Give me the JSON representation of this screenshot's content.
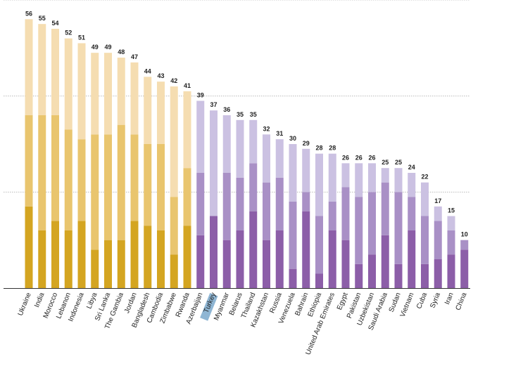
{
  "chart_data": {
    "type": "bar",
    "stacked": true,
    "grid": true,
    "ylim": [
      0,
      60
    ],
    "gridlines_at": [
      20,
      40,
      60
    ],
    "colors": {
      "group_a": [
        "#d4a521",
        "#e9c56e",
        "#f5ddb1"
      ],
      "group_b": [
        "#8c5ea8",
        "#a990c6",
        "#cbc1e2"
      ],
      "highlight_label_bg": "#8fb6d4",
      "gridline": "#b0b0b0",
      "axis": "#333333"
    },
    "categories": [
      "Ukraine",
      "India",
      "Morocco",
      "Lebanon",
      "Indonesia",
      "Libya",
      "Sri Lanka",
      "The Gambia",
      "Jordan",
      "Bangladesh",
      "Cambodia",
      "Zimbabwe",
      "Rwanda",
      "Azerbaijan",
      "Turkey",
      "Myanmar",
      "Belarus",
      "Thailand",
      "Kazakhstan",
      "Russia",
      "Venezuela",
      "Bahrain",
      "Ethiopia",
      "United Arab Emirates",
      "Egypt",
      "Pakistan",
      "Uzbekistan",
      "Saudi Arabia",
      "Sudan",
      "Vietnam",
      "Cuba",
      "Syria",
      "Iran",
      "China"
    ],
    "group": [
      "a",
      "a",
      "a",
      "a",
      "a",
      "a",
      "a",
      "a",
      "a",
      "a",
      "a",
      "a",
      "a",
      "b",
      "b",
      "b",
      "b",
      "b",
      "b",
      "b",
      "b",
      "b",
      "b",
      "b",
      "b",
      "b",
      "b",
      "b",
      "b",
      "b",
      "b",
      "b",
      "b",
      "b"
    ],
    "highlighted_category": "Turkey",
    "series": [
      {
        "values": [
          17,
          12,
          14,
          12,
          14,
          8,
          10,
          10,
          14,
          13,
          12,
          7,
          13,
          11,
          15,
          10,
          12,
          16,
          10,
          12,
          4,
          16,
          3,
          12,
          10,
          5,
          7,
          11,
          5,
          12,
          5,
          6,
          7,
          8
        ]
      },
      {
        "values": [
          19,
          24,
          22,
          21,
          17,
          24,
          22,
          24,
          18,
          17,
          18,
          12,
          12,
          13,
          0,
          14,
          11,
          10,
          12,
          11,
          14,
          4,
          12,
          6,
          11,
          14,
          13,
          11,
          15,
          7,
          10,
          8,
          5,
          2
        ]
      },
      {
        "values": [
          20,
          19,
          18,
          19,
          20,
          17,
          17,
          14,
          15,
          14,
          13,
          23,
          16,
          15,
          22,
          12,
          12,
          9,
          10,
          8,
          12,
          9,
          13,
          10,
          5,
          7,
          6,
          3,
          5,
          5,
          7,
          3,
          3,
          0
        ]
      }
    ],
    "totals": [
      56,
      55,
      54,
      52,
      51,
      49,
      49,
      48,
      47,
      44,
      43,
      42,
      41,
      39,
      37,
      36,
      35,
      35,
      32,
      31,
      30,
      29,
      28,
      28,
      26,
      26,
      26,
      25,
      25,
      24,
      22,
      17,
      15,
      10
    ]
  }
}
